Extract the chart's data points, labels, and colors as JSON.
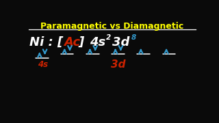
{
  "title": "Paramagnetic vs Diamagnetic",
  "title_color": "#FFFF00",
  "bg_color": "#0a0a0a",
  "arrow_color": "#3399cc",
  "white_color": "#ffffff",
  "red_color": "#cc2200",
  "line_color": "#cccccc",
  "ni_prefix": "Ni : [",
  "ni_ac": "Ac",
  "ni_suffix": "]  4s",
  "ni_sup2": "2",
  "ni_3d": "3d",
  "ni_sup8": "8",
  "label_4s": "4s",
  "label_3d": "3d",
  "orb_4s": {
    "up": true,
    "down": true
  },
  "orb_3d": [
    {
      "up": true,
      "down": true
    },
    {
      "up": true,
      "down": true
    },
    {
      "up": true,
      "down": true
    },
    {
      "up": true,
      "down": false
    },
    {
      "up": true,
      "down": false
    }
  ],
  "title_fontsize": 9.0,
  "text_fontsize": 13.0,
  "arrow_fontsize": 13.0,
  "sup_fontsize": 7.5,
  "label_fontsize": 8.5
}
